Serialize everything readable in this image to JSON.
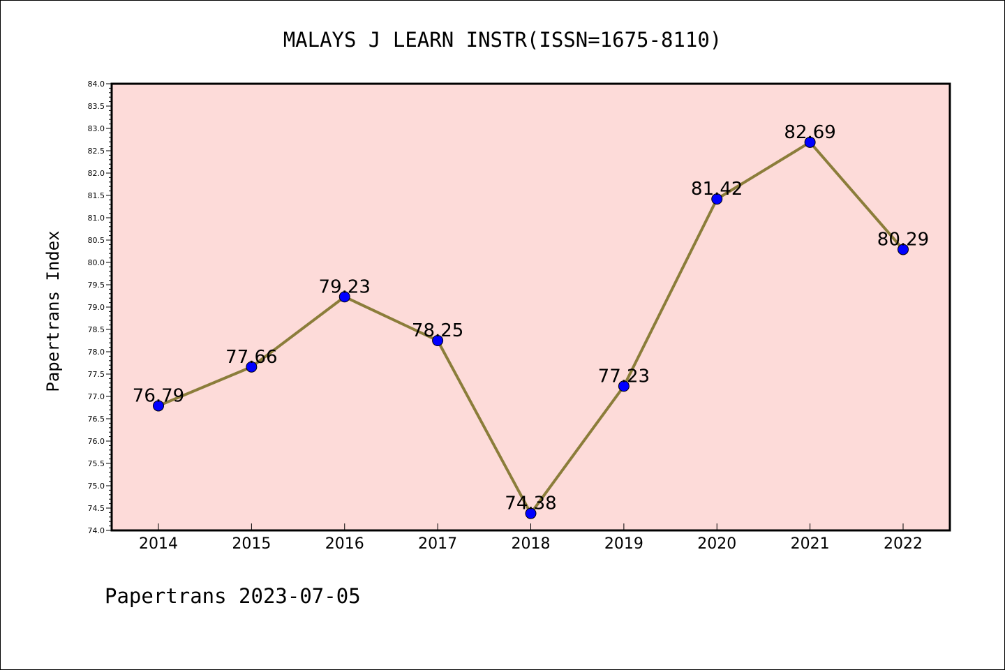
{
  "chart_data": {
    "type": "line",
    "title": "MALAYS J LEARN INSTR(ISSN=1675-8110)",
    "ylabel": "Papertrans Index",
    "xlabel": "",
    "footer": "Papertrans 2023-07-05",
    "categories": [
      "2014",
      "2015",
      "2016",
      "2017",
      "2018",
      "2019",
      "2020",
      "2021",
      "2022"
    ],
    "series": [
      {
        "values": [
          76.79,
          77.66,
          79.23,
          78.25,
          74.38,
          77.23,
          81.42,
          82.69,
          80.29
        ]
      }
    ],
    "data_labels": [
      "76.79",
      "77.66",
      "79.23",
      "78.25",
      "74.38",
      "77.23",
      "81.42",
      "82.69",
      "80.29"
    ],
    "ylim": [
      74.0,
      84.0
    ],
    "yticks": [
      "74.0",
      "74.5",
      "75.0",
      "75.5",
      "76.0",
      "76.5",
      "77.0",
      "77.5",
      "78.0",
      "78.5",
      "79.0",
      "79.5",
      "80.0",
      "80.5",
      "81.0",
      "81.5",
      "82.0",
      "82.5",
      "83.0",
      "83.5",
      "84.0"
    ],
    "grid": false,
    "legend": "none",
    "colors": {
      "plot_background": "#fddbd9",
      "line": "#8b7d3a",
      "marker": "#0000ff"
    }
  }
}
